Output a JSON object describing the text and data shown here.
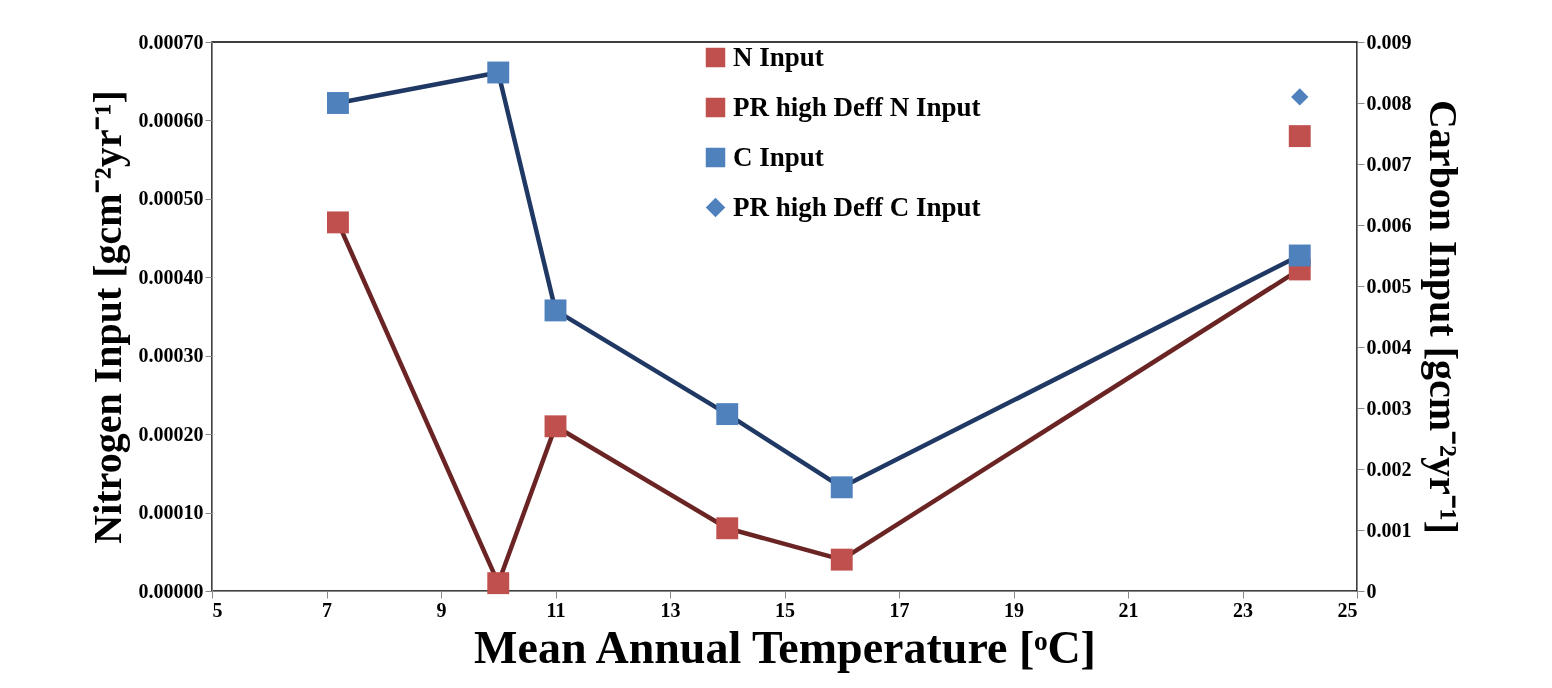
{
  "chart_data": {
    "type": "line",
    "xlabel": "Mean Annual Temperature [ᵒC]",
    "ylabel": "Nitrogen Input [gcm⁻²yr⁻¹]",
    "y2label": "Carbon Input [gcm⁻²yr⁻¹]",
    "xlim": [
      5,
      25
    ],
    "xticks": [
      5,
      7,
      9,
      11,
      13,
      15,
      17,
      19,
      21,
      23,
      25
    ],
    "ylim": [
      0,
      0.0007
    ],
    "yticks": [
      {
        "value": 0,
        "label": "0.00000"
      },
      {
        "value": 0.0001,
        "label": "0.00010"
      },
      {
        "value": 0.0002,
        "label": "0.00020"
      },
      {
        "value": 0.0003,
        "label": "0.00030"
      },
      {
        "value": 0.0004,
        "label": "0.00040"
      },
      {
        "value": 0.0005,
        "label": "0.00050"
      },
      {
        "value": 0.0006,
        "label": "0.00060"
      },
      {
        "value": 0.0007,
        "label": "0.00070"
      }
    ],
    "y2lim": [
      0,
      0.009
    ],
    "y2ticks": [
      0,
      0.001,
      0.002,
      0.003,
      0.004,
      0.005,
      0.006,
      0.007,
      0.008,
      0.009
    ],
    "grid": false,
    "legend": "top",
    "series": [
      {
        "name": "N Input",
        "axis": "y",
        "marker": "square",
        "color": "#6b2424",
        "colors": [
          "#c0504d",
          "#c0504d",
          "#c0504d",
          "#c0504d",
          "#c0504d",
          "#c0504d"
        ],
        "x": [
          7.2,
          10,
          11,
          14,
          16,
          24
        ],
        "values": [
          0.00047,
          1e-05,
          0.00021,
          8e-05,
          4e-05,
          0.00041
        ]
      },
      {
        "name": "PR high Deff N Input",
        "type": "scatter",
        "axis": "y",
        "marker": "square",
        "color": "#c0504d",
        "x": [
          24
        ],
        "values": [
          0.00058
        ]
      },
      {
        "name": "C Input",
        "axis": "y2",
        "marker": "square",
        "color": "#1f3864",
        "colors": [
          "#4f81bd",
          "#4f81bd",
          "#4f81bd",
          "#4f81bd",
          "#4f81bd",
          "#4f81bd"
        ],
        "x": [
          7.2,
          10,
          11,
          14,
          16,
          24
        ],
        "values": [
          0.008,
          0.0085,
          0.0046,
          0.0029,
          0.0017,
          0.0055
        ]
      },
      {
        "name": "PR high Deff C Input",
        "type": "scatter",
        "axis": "y2",
        "marker": "diamond",
        "color": "#4f81bd",
        "x": [
          24
        ],
        "values": [
          0.0081
        ]
      }
    ]
  }
}
